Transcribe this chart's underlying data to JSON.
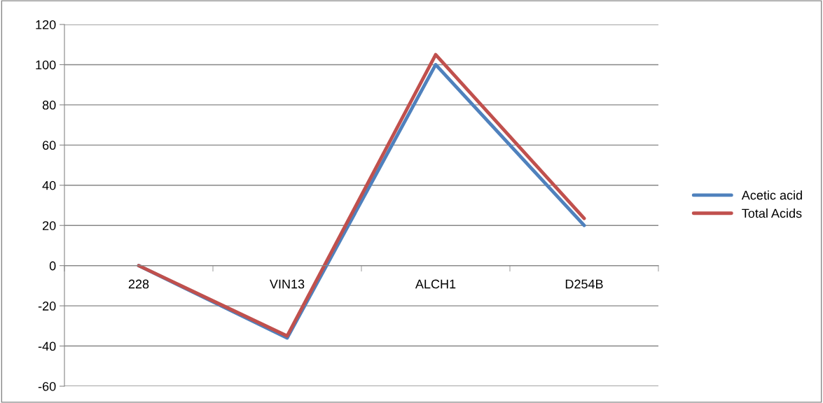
{
  "chart_data": {
    "type": "line",
    "categories": [
      "228",
      "VIN13",
      "ALCH1",
      "D254B"
    ],
    "series": [
      {
        "name": "Acetic acid",
        "color": "#4f81bd",
        "values": [
          0,
          -36,
          100,
          20
        ]
      },
      {
        "name": "Total Acids",
        "color": "#c0504d",
        "values": [
          0,
          -35,
          105,
          23.5
        ]
      }
    ],
    "ylim": [
      -60,
      120
    ],
    "yticks": [
      -60,
      -40,
      -20,
      0,
      20,
      40,
      60,
      80,
      100,
      120
    ],
    "grid": "y",
    "legend": "right",
    "marker": "none",
    "line_style": "solid"
  }
}
